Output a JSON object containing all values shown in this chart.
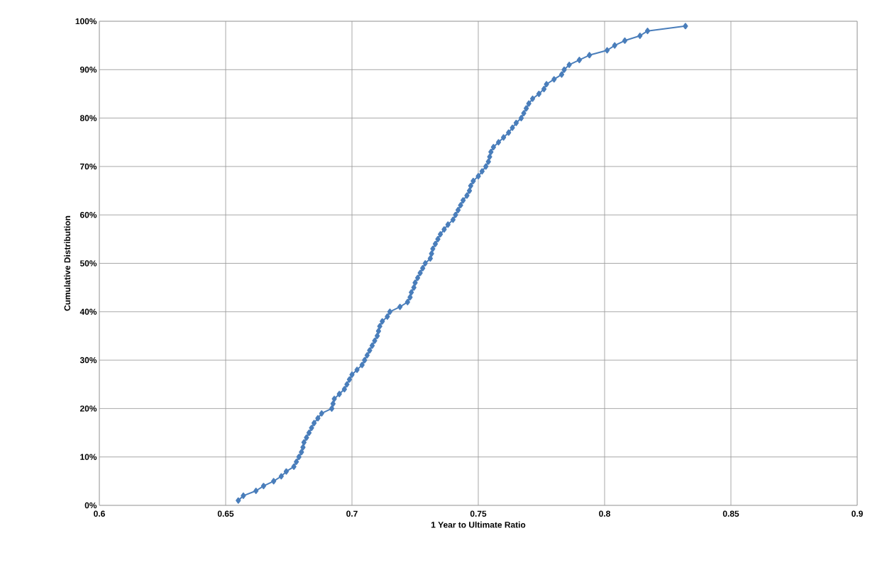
{
  "chart_data": {
    "type": "line",
    "xlabel": "1 Year to Ultimate Ratio",
    "ylabel": "Cumulative Distribution",
    "x": [
      0.655,
      0.657,
      0.662,
      0.665,
      0.669,
      0.672,
      0.674,
      0.677,
      0.678,
      0.679,
      0.68,
      0.6806,
      0.681,
      0.682,
      0.683,
      0.684,
      0.685,
      0.6865,
      0.688,
      0.692,
      0.6925,
      0.693,
      0.695,
      0.697,
      0.698,
      0.699,
      0.7,
      0.702,
      0.704,
      0.705,
      0.706,
      0.707,
      0.708,
      0.709,
      0.71,
      0.7105,
      0.711,
      0.712,
      0.714,
      0.715,
      0.719,
      0.722,
      0.723,
      0.7235,
      0.7245,
      0.725,
      0.726,
      0.727,
      0.728,
      0.729,
      0.731,
      0.7315,
      0.732,
      0.733,
      0.734,
      0.735,
      0.7365,
      0.738,
      0.74,
      0.741,
      0.742,
      0.743,
      0.744,
      0.7455,
      0.7465,
      0.747,
      0.748,
      0.75,
      0.7515,
      0.753,
      0.754,
      0.7545,
      0.755,
      0.756,
      0.758,
      0.76,
      0.762,
      0.7635,
      0.765,
      0.767,
      0.768,
      0.769,
      0.77,
      0.7715,
      0.774,
      0.776,
      0.777,
      0.78,
      0.783,
      0.784,
      0.786,
      0.79,
      0.794,
      0.801,
      0.804,
      0.808,
      0.814,
      0.817,
      0.832
    ],
    "series": [
      {
        "color": "#4a7ebb",
        "values": [
          1,
          2,
          3,
          4,
          5,
          6,
          7,
          8,
          9,
          10,
          11,
          12,
          13,
          14,
          15,
          16,
          17,
          18,
          19,
          20,
          21,
          22,
          23,
          24,
          25,
          26,
          27,
          28,
          29,
          30,
          31,
          32,
          33,
          34,
          35,
          36,
          37,
          38,
          39,
          40,
          41,
          42,
          43,
          44,
          45,
          46,
          47,
          48,
          49,
          50,
          51,
          52,
          53,
          54,
          55,
          56,
          57,
          58,
          59,
          60,
          61,
          62,
          63,
          64,
          65,
          66,
          67,
          68,
          69,
          70,
          71,
          72,
          73,
          74,
          75,
          76,
          77,
          78,
          79,
          80,
          81,
          82,
          83,
          84,
          85,
          86,
          87,
          88,
          89,
          90,
          91,
          92,
          93,
          94,
          95,
          96,
          97,
          98,
          99
        ]
      }
    ],
    "xlim": [
      0.6,
      0.9
    ],
    "xticks": [
      0.6,
      0.65,
      0.7,
      0.75,
      0.8,
      0.85,
      0.9
    ],
    "ylim": [
      0,
      100
    ],
    "yticks": [
      {
        "value": 0,
        "label": "0%"
      },
      {
        "value": 10,
        "label": "10%"
      },
      {
        "value": 20,
        "label": "20%"
      },
      {
        "value": 30,
        "label": "30%"
      },
      {
        "value": 40,
        "label": "40%"
      },
      {
        "value": 50,
        "label": "50%"
      },
      {
        "value": 60,
        "label": "60%"
      },
      {
        "value": 70,
        "label": "70%"
      },
      {
        "value": 80,
        "label": "80%"
      },
      {
        "value": 90,
        "label": "90%"
      },
      {
        "value": 100,
        "label": "100%"
      }
    ],
    "grid": true,
    "marker": "diamond",
    "line_style": "solid"
  }
}
